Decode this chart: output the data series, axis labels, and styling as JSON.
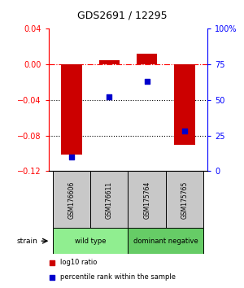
{
  "title": "GDS2691 / 12295",
  "samples": [
    "GSM176606",
    "GSM176611",
    "GSM175764",
    "GSM175765"
  ],
  "log10_ratio": [
    -0.101,
    0.005,
    0.012,
    -0.09
  ],
  "percentile_rank": [
    10,
    52,
    63,
    28
  ],
  "bar_color": "#cc0000",
  "dot_color": "#0000cc",
  "left_ylim": [
    -0.12,
    0.04
  ],
  "left_yticks": [
    -0.12,
    -0.08,
    -0.04,
    0.0,
    0.04
  ],
  "right_ylim": [
    0,
    100
  ],
  "right_yticks": [
    0,
    25,
    50,
    75,
    100
  ],
  "right_yticklabels": [
    "0",
    "25",
    "50",
    "75",
    "100%"
  ],
  "groups": [
    {
      "label": "wild type",
      "indices": [
        0,
        1
      ],
      "color": "#90ee90"
    },
    {
      "label": "dominant negative",
      "indices": [
        2,
        3
      ],
      "color": "#66cc66"
    }
  ],
  "strain_label": "strain",
  "legend": [
    {
      "label": "log10 ratio",
      "color": "#cc0000",
      "marker": "s"
    },
    {
      "label": "percentile rank within the sample",
      "color": "#0000cc",
      "marker": "s"
    }
  ],
  "dotted_lines": [
    -0.04,
    -0.08
  ],
  "bar_width": 0.55,
  "dot_size": 25,
  "sample_box_color": "#c8c8c8",
  "group_colors": [
    "#90ee90",
    "#66cc66"
  ]
}
